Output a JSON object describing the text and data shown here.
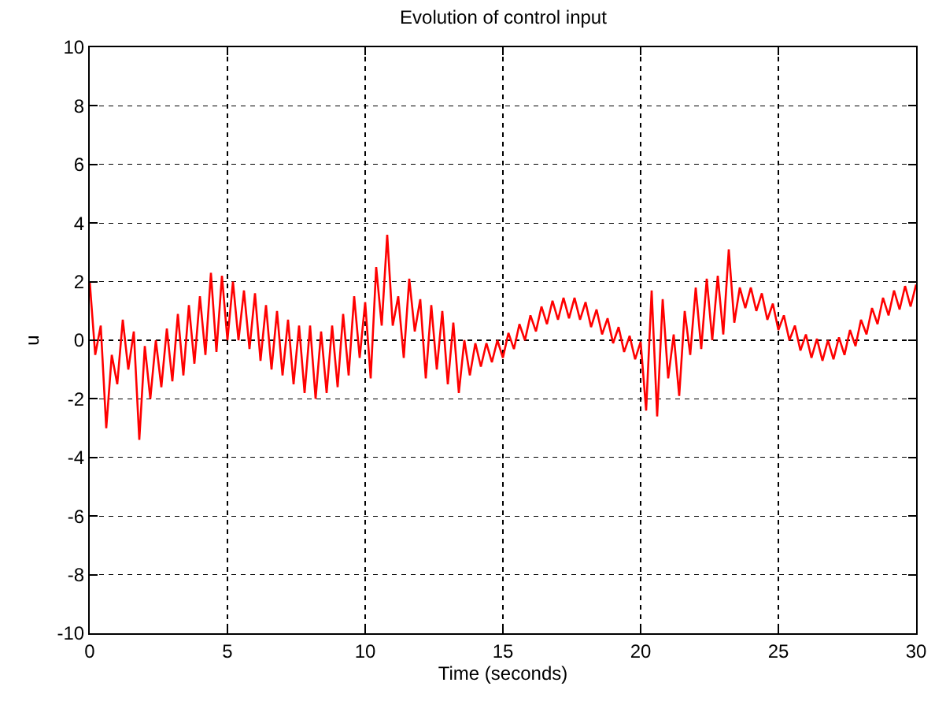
{
  "chart_data": {
    "type": "line",
    "title": "Evolution of control input",
    "xlabel": "Time (seconds)",
    "ylabel": "u",
    "x": [
      0,
      0.2,
      0.4,
      0.6,
      0.8,
      1,
      1.2,
      1.4,
      1.6,
      1.8,
      2,
      2.2,
      2.4,
      2.6,
      2.8,
      3,
      3.2,
      3.4,
      3.6,
      3.8,
      4,
      4.2,
      4.4,
      4.6,
      4.8,
      5,
      5.2,
      5.4,
      5.6,
      5.8,
      6,
      6.2,
      6.4,
      6.6,
      6.8,
      7,
      7.2,
      7.4,
      7.6,
      7.8,
      8,
      8.2,
      8.4,
      8.6,
      8.8,
      9,
      9.2,
      9.4,
      9.6,
      9.8,
      10,
      10.2,
      10.4,
      10.6,
      10.8,
      11,
      11.2,
      11.4,
      11.6,
      11.8,
      12,
      12.2,
      12.4,
      12.6,
      12.8,
      13,
      13.2,
      13.4,
      13.6,
      13.8,
      14,
      14.2,
      14.4,
      14.6,
      14.8,
      15,
      15.2,
      15.4,
      15.6,
      15.8,
      16,
      16.2,
      16.4,
      16.6,
      16.8,
      17,
      17.2,
      17.4,
      17.6,
      17.8,
      18,
      18.2,
      18.4,
      18.6,
      18.8,
      19,
      19.2,
      19.4,
      19.6,
      19.8,
      20,
      20.2,
      20.4,
      20.6,
      20.8,
      21,
      21.2,
      21.4,
      21.6,
      21.8,
      22,
      22.2,
      22.4,
      22.6,
      22.8,
      23,
      23.2,
      23.4,
      23.6,
      23.8,
      24,
      24.2,
      24.4,
      24.6,
      24.8,
      25,
      25.2,
      25.4,
      25.6,
      25.8,
      26,
      26.2,
      26.4,
      26.6,
      26.8,
      27,
      27.2,
      27.4,
      27.6,
      27.8,
      28,
      28.2,
      28.4,
      28.6,
      28.8,
      29,
      29.2,
      29.4,
      29.6,
      29.8,
      30
    ],
    "series": [
      {
        "color": "#ff0000",
        "values": [
          2.0,
          -0.5,
          0.5,
          -3.0,
          -0.5,
          -1.5,
          0.7,
          -1.0,
          0.3,
          -3.4,
          -0.2,
          -2.0,
          0.0,
          -1.6,
          0.4,
          -1.4,
          0.9,
          -1.2,
          1.2,
          -0.8,
          1.5,
          -0.5,
          2.3,
          -0.4,
          2.2,
          0.0,
          2.0,
          0.0,
          1.7,
          -0.3,
          1.6,
          -0.7,
          1.2,
          -1.0,
          1.0,
          -1.2,
          0.7,
          -1.5,
          0.5,
          -1.8,
          0.5,
          -2.0,
          0.3,
          -1.8,
          0.5,
          -1.6,
          0.9,
          -1.2,
          1.5,
          -0.6,
          1.3,
          -1.3,
          2.5,
          0.5,
          3.6,
          0.5,
          1.5,
          -0.6,
          2.1,
          0.3,
          1.4,
          -1.3,
          1.2,
          -1.0,
          1.0,
          -1.5,
          0.6,
          -1.8,
          0.0,
          -1.2,
          -0.1,
          -0.9,
          -0.1,
          -0.75,
          0.0,
          -0.6,
          0.25,
          -0.3,
          0.55,
          0.0,
          0.85,
          0.3,
          1.15,
          0.55,
          1.35,
          0.7,
          1.45,
          0.75,
          1.45,
          0.7,
          1.3,
          0.45,
          1.05,
          0.2,
          0.75,
          -0.1,
          0.45,
          -0.4,
          0.15,
          -0.65,
          -0.05,
          -2.4,
          1.7,
          -2.6,
          1.4,
          -1.3,
          0.2,
          -1.9,
          1.0,
          -0.5,
          1.8,
          -0.3,
          2.1,
          0.0,
          2.2,
          0.2,
          3.1,
          0.6,
          1.8,
          1.1,
          1.8,
          1.0,
          1.6,
          0.7,
          1.25,
          0.35,
          0.85,
          0.0,
          0.5,
          -0.35,
          0.2,
          -0.6,
          0.05,
          -0.7,
          0.0,
          -0.65,
          0.1,
          -0.5,
          0.35,
          -0.2,
          0.7,
          0.2,
          1.1,
          0.55,
          1.45,
          0.85,
          1.7,
          1.05,
          1.85,
          1.15,
          1.9
        ]
      }
    ],
    "xlim": [
      0,
      30
    ],
    "ylim": [
      -10,
      10
    ],
    "xticks": [
      0,
      5,
      10,
      15,
      20,
      25,
      30
    ],
    "yticks": [
      -10,
      -8,
      -6,
      -4,
      -2,
      0,
      2,
      4,
      6,
      8,
      10
    ],
    "grid": true
  }
}
